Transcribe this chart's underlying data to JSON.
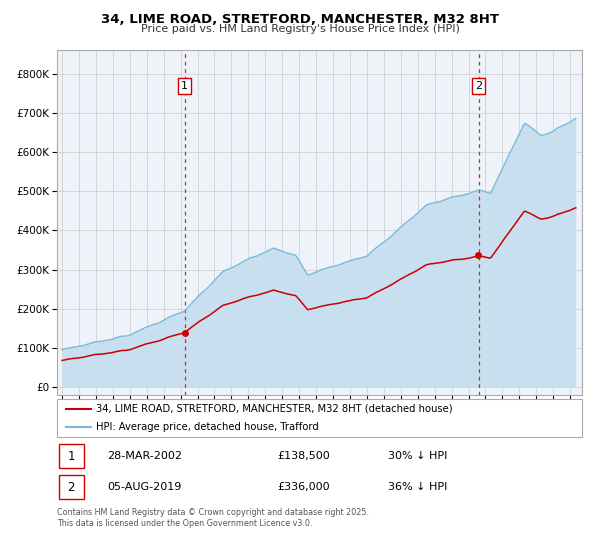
{
  "title_line1": "34, LIME ROAD, STRETFORD, MANCHESTER, M32 8HT",
  "title_line2": "Price paid vs. HM Land Registry's House Price Index (HPI)",
  "red_line_label": "34, LIME ROAD, STRETFORD, MANCHESTER, M32 8HT (detached house)",
  "blue_line_label": "HPI: Average price, detached house, Trafford",
  "marker1_date": "28-MAR-2002",
  "marker1_price": 138500,
  "marker1_hpi_pct": "30% ↓ HPI",
  "marker2_date": "05-AUG-2019",
  "marker2_price": 336000,
  "marker2_hpi_pct": "36% ↓ HPI",
  "vline1_year": 2002.24,
  "vline2_year": 2019.59,
  "red_color": "#cc0000",
  "blue_color": "#7ab8d9",
  "blue_fill_color": "#c8dff0",
  "vline_color": "#dd2222",
  "grid_color": "#cccccc",
  "plot_bg_color": "#eef3fa",
  "footer": "Contains HM Land Registry data © Crown copyright and database right 2025.\nThis data is licensed under the Open Government Licence v3.0.",
  "ylim_max": 860000,
  "ylim_min": -20000,
  "xmin": 1994.7,
  "xmax": 2025.7
}
